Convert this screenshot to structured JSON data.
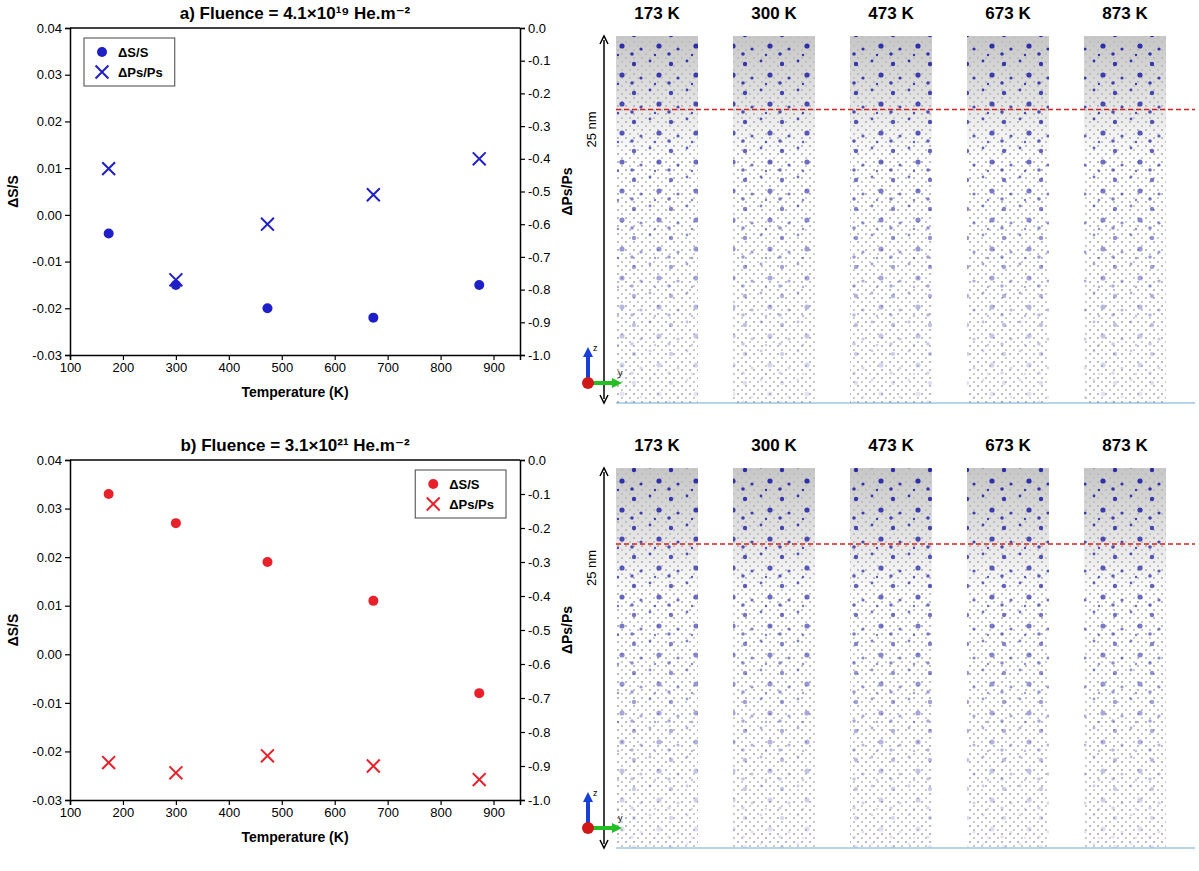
{
  "chart_data": [
    {
      "type": "scatter",
      "title": "a) Fluence = 4.1×10¹⁹ He.m⁻²",
      "x_label": "Temperature (K)",
      "y_label": "ΔS/S",
      "y2_label": "ΔPs/Ps",
      "x": [
        173,
        300,
        473,
        673,
        873
      ],
      "xlim": [
        100,
        950
      ],
      "xticks": [
        100,
        200,
        300,
        400,
        500,
        600,
        700,
        800,
        900
      ],
      "ylim": [
        -0.03,
        0.04
      ],
      "yticks": [
        -0.03,
        -0.02,
        -0.01,
        {
          "value": 0,
          "label": "0.00"
        },
        0.01,
        0.02,
        0.03,
        0.04
      ],
      "y2lim": [
        -1.0,
        0.0
      ],
      "y2ticks": [
        {
          "value": -1,
          "label": "-1.0"
        },
        -0.9,
        -0.8,
        -0.7,
        -0.6,
        -0.5,
        -0.4,
        -0.3,
        -0.2,
        -0.1,
        {
          "value": 0,
          "label": "0.0"
        }
      ],
      "legend": "upper left",
      "series": [
        {
          "name": "ΔS/S",
          "color": "#1f1fc8",
          "marker": "circle",
          "values": [
            -0.004,
            -0.015,
            -0.02,
            -0.022,
            -0.015
          ]
        },
        {
          "name": "ΔPs/Ps",
          "color": "#1f1fc8",
          "marker": "x",
          "axis": "y2",
          "values": [
            -0.43,
            -0.77,
            -0.6,
            -0.51,
            -0.4
          ]
        }
      ]
    },
    {
      "type": "scatter",
      "title": "b) Fluence = 3.1×10²¹ He.m⁻²",
      "x_label": "Temperature (K)",
      "y_label": "ΔS/S",
      "y2_label": "ΔPs/Ps",
      "x": [
        173,
        300,
        473,
        673,
        873
      ],
      "xlim": [
        100,
        950
      ],
      "xticks": [
        100,
        200,
        300,
        400,
        500,
        600,
        700,
        800,
        900
      ],
      "ylim": [
        -0.03,
        0.04
      ],
      "yticks": [
        -0.03,
        -0.02,
        -0.01,
        {
          "value": 0,
          "label": "0.00"
        },
        0.01,
        0.02,
        0.03,
        0.04
      ],
      "y2lim": [
        -1.0,
        0.0
      ],
      "y2ticks": [
        {
          "value": -1,
          "label": "-1.0"
        },
        -0.9,
        -0.8,
        -0.7,
        -0.6,
        -0.5,
        -0.4,
        -0.3,
        -0.2,
        -0.1,
        {
          "value": 0,
          "label": "0.0"
        }
      ],
      "legend": "upper right",
      "series": [
        {
          "name": "ΔS/S",
          "color": "#e8202a",
          "marker": "circle",
          "values": [
            0.033,
            0.027,
            0.019,
            0.011,
            -0.008
          ]
        },
        {
          "name": "ΔPs/Ps",
          "color": "#e8202a",
          "marker": "x",
          "axis": "y2",
          "values": [
            -0.89,
            -0.92,
            -0.87,
            -0.9,
            -0.94
          ]
        }
      ]
    }
  ],
  "snapshots": [
    {
      "labels": [
        "173 K",
        "300 K",
        "473 K",
        "673 K",
        "873 K"
      ],
      "scale_label": "25 nm",
      "axes": [
        "z",
        "y"
      ]
    },
    {
      "labels": [
        "173 K",
        "300 K",
        "473 K",
        "673 K",
        "873 K"
      ],
      "scale_label": "25 nm",
      "axes": [
        "z",
        "y"
      ]
    }
  ]
}
